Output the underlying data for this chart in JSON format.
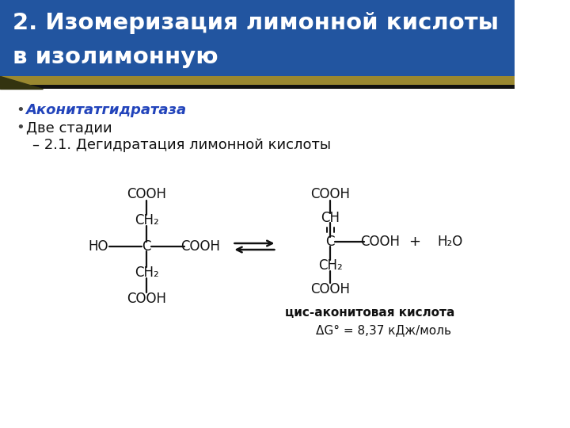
{
  "title_line1": "2. Изомеризация лимонной кислоты",
  "title_line2": "в изолимонную",
  "title_bg_color": "#2255A0",
  "title_stripe_color": "#9A8830",
  "slide_bg_color": "#FFFFFF",
  "bullet1_text": "Аконитатгидратаза",
  "bullet1_color": "#2244BB",
  "bullet2_text": "Две стадии",
  "sub_bullet_text": "– 2.1. Дегидратация лимонной кислоты",
  "label_cis": "цис-аконитовая кислота",
  "label_dg": "ΔG° = 8,37 кДж/моль",
  "title_font_size": 21,
  "body_font_size": 13,
  "title_text_color": "#FFFFFF",
  "body_text_color": "#111111",
  "lc_color": "#111111"
}
